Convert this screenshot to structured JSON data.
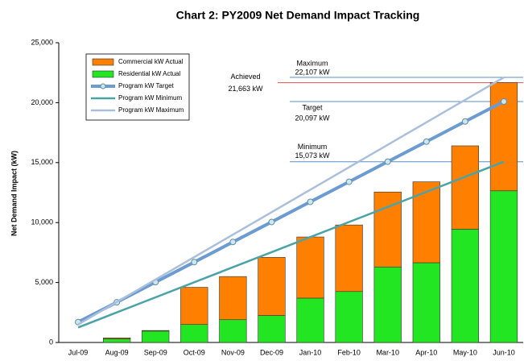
{
  "chart_data": {
    "type": "bar",
    "title": "Chart 2:  PY2009 Net Demand Impact Tracking",
    "y_label": "Net Demand Impact (kW)",
    "categories": [
      "Jul-09",
      "Aug-09",
      "Sep-09",
      "Oct-09",
      "Nov-09",
      "Dec-09",
      "Jan-10",
      "Feb-10",
      "Mar-10",
      "Apr-10",
      "May-10",
      "Jun-10"
    ],
    "series": [
      {
        "name": "Commercial kW Actual",
        "type": "bar",
        "color": "#ff8000",
        "values": [
          0,
          80,
          50,
          3100,
          3600,
          4850,
          5100,
          5550,
          6250,
          6750,
          6950,
          9013
        ]
      },
      {
        "name": "Residential kW Actual",
        "type": "bar",
        "color": "#22e622",
        "values": [
          0,
          300,
          950,
          1500,
          1900,
          2250,
          3700,
          4250,
          6300,
          6650,
          9450,
          12650
        ]
      },
      {
        "name": "Program kW Target",
        "type": "line",
        "marker": true,
        "color": "#6c9bd2",
        "values": [
          1700,
          3350,
          5030,
          6700,
          8380,
          10050,
          11730,
          13400,
          15080,
          16750,
          18430,
          20097
        ]
      },
      {
        "name": "Program kW Minimum",
        "type": "line",
        "color": "#4aa3a8",
        "values": [
          1250,
          2507,
          3763,
          5020,
          6277,
          7533,
          8790,
          10047,
          11303,
          12560,
          13817,
          15073
        ]
      },
      {
        "name": "Program kW Maximum",
        "type": "line",
        "color": "#a9bfdc",
        "values": [
          1500,
          3373,
          5247,
          7120,
          8993,
          10867,
          12740,
          14613,
          16487,
          18360,
          20234,
          22107
        ]
      }
    ],
    "annotations": [
      {
        "text": "Maximum",
        "value_text": "22,107 kW",
        "value": 22107,
        "color": "#5b8fc0"
      },
      {
        "text": "Achieved",
        "value_text": "21,663 kW",
        "value": 21663,
        "color": "#d9534f"
      },
      {
        "text": "Target",
        "value_text": "20,097 kW",
        "value": 20097,
        "color": "#5b8fc0"
      },
      {
        "text": "Minimum",
        "value_text": "15,073 kW",
        "value": 15073,
        "color": "#5b8fc0"
      }
    ],
    "ylim": [
      0,
      25000
    ],
    "yticks": [
      0,
      {
        "value": 5000,
        "label": "5,000"
      },
      {
        "value": 10000,
        "label": "10,000"
      },
      {
        "value": 15000,
        "label": "15,000"
      },
      {
        "value": 20000,
        "label": "20,000"
      },
      {
        "value": 25000,
        "label": "25,000"
      }
    ],
    "grid": false,
    "legend": "upper left"
  }
}
